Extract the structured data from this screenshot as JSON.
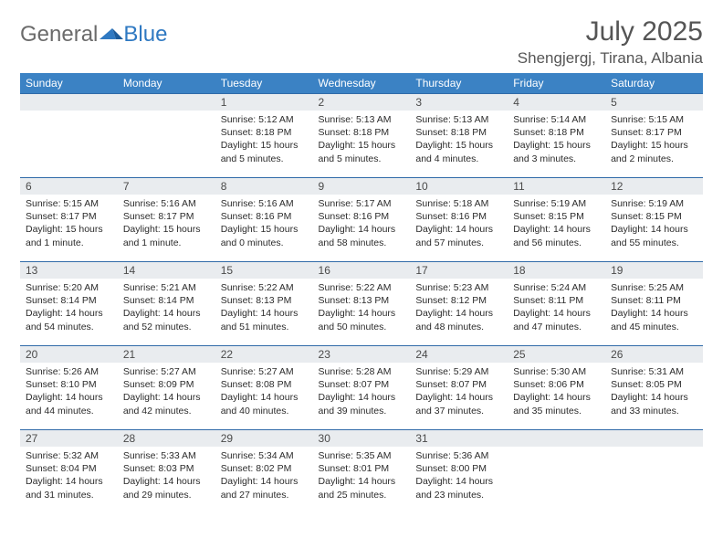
{
  "logo": {
    "part1": "General",
    "part2": "Blue"
  },
  "title": "July 2025",
  "location": "Shengjergj, Tirana, Albania",
  "colors": {
    "header_bg": "#3b82c4",
    "row_border": "#2f6aa8",
    "daynum_bg": "#e9ecef",
    "text": "#2b2b2b",
    "logo_gray": "#6b6b6b",
    "logo_blue": "#2f79c2"
  },
  "dayHeaders": [
    "Sunday",
    "Monday",
    "Tuesday",
    "Wednesday",
    "Thursday",
    "Friday",
    "Saturday"
  ],
  "startOffset": 2,
  "days": [
    {
      "n": 1,
      "sr": "5:12 AM",
      "ss": "8:18 PM",
      "dl": "15 hours and 5 minutes."
    },
    {
      "n": 2,
      "sr": "5:13 AM",
      "ss": "8:18 PM",
      "dl": "15 hours and 5 minutes."
    },
    {
      "n": 3,
      "sr": "5:13 AM",
      "ss": "8:18 PM",
      "dl": "15 hours and 4 minutes."
    },
    {
      "n": 4,
      "sr": "5:14 AM",
      "ss": "8:18 PM",
      "dl": "15 hours and 3 minutes."
    },
    {
      "n": 5,
      "sr": "5:15 AM",
      "ss": "8:17 PM",
      "dl": "15 hours and 2 minutes."
    },
    {
      "n": 6,
      "sr": "5:15 AM",
      "ss": "8:17 PM",
      "dl": "15 hours and 1 minute."
    },
    {
      "n": 7,
      "sr": "5:16 AM",
      "ss": "8:17 PM",
      "dl": "15 hours and 1 minute."
    },
    {
      "n": 8,
      "sr": "5:16 AM",
      "ss": "8:16 PM",
      "dl": "15 hours and 0 minutes."
    },
    {
      "n": 9,
      "sr": "5:17 AM",
      "ss": "8:16 PM",
      "dl": "14 hours and 58 minutes."
    },
    {
      "n": 10,
      "sr": "5:18 AM",
      "ss": "8:16 PM",
      "dl": "14 hours and 57 minutes."
    },
    {
      "n": 11,
      "sr": "5:19 AM",
      "ss": "8:15 PM",
      "dl": "14 hours and 56 minutes."
    },
    {
      "n": 12,
      "sr": "5:19 AM",
      "ss": "8:15 PM",
      "dl": "14 hours and 55 minutes."
    },
    {
      "n": 13,
      "sr": "5:20 AM",
      "ss": "8:14 PM",
      "dl": "14 hours and 54 minutes."
    },
    {
      "n": 14,
      "sr": "5:21 AM",
      "ss": "8:14 PM",
      "dl": "14 hours and 52 minutes."
    },
    {
      "n": 15,
      "sr": "5:22 AM",
      "ss": "8:13 PM",
      "dl": "14 hours and 51 minutes."
    },
    {
      "n": 16,
      "sr": "5:22 AM",
      "ss": "8:13 PM",
      "dl": "14 hours and 50 minutes."
    },
    {
      "n": 17,
      "sr": "5:23 AM",
      "ss": "8:12 PM",
      "dl": "14 hours and 48 minutes."
    },
    {
      "n": 18,
      "sr": "5:24 AM",
      "ss": "8:11 PM",
      "dl": "14 hours and 47 minutes."
    },
    {
      "n": 19,
      "sr": "5:25 AM",
      "ss": "8:11 PM",
      "dl": "14 hours and 45 minutes."
    },
    {
      "n": 20,
      "sr": "5:26 AM",
      "ss": "8:10 PM",
      "dl": "14 hours and 44 minutes."
    },
    {
      "n": 21,
      "sr": "5:27 AM",
      "ss": "8:09 PM",
      "dl": "14 hours and 42 minutes."
    },
    {
      "n": 22,
      "sr": "5:27 AM",
      "ss": "8:08 PM",
      "dl": "14 hours and 40 minutes."
    },
    {
      "n": 23,
      "sr": "5:28 AM",
      "ss": "8:07 PM",
      "dl": "14 hours and 39 minutes."
    },
    {
      "n": 24,
      "sr": "5:29 AM",
      "ss": "8:07 PM",
      "dl": "14 hours and 37 minutes."
    },
    {
      "n": 25,
      "sr": "5:30 AM",
      "ss": "8:06 PM",
      "dl": "14 hours and 35 minutes."
    },
    {
      "n": 26,
      "sr": "5:31 AM",
      "ss": "8:05 PM",
      "dl": "14 hours and 33 minutes."
    },
    {
      "n": 27,
      "sr": "5:32 AM",
      "ss": "8:04 PM",
      "dl": "14 hours and 31 minutes."
    },
    {
      "n": 28,
      "sr": "5:33 AM",
      "ss": "8:03 PM",
      "dl": "14 hours and 29 minutes."
    },
    {
      "n": 29,
      "sr": "5:34 AM",
      "ss": "8:02 PM",
      "dl": "14 hours and 27 minutes."
    },
    {
      "n": 30,
      "sr": "5:35 AM",
      "ss": "8:01 PM",
      "dl": "14 hours and 25 minutes."
    },
    {
      "n": 31,
      "sr": "5:36 AM",
      "ss": "8:00 PM",
      "dl": "14 hours and 23 minutes."
    }
  ],
  "labels": {
    "sunrise": "Sunrise:",
    "sunset": "Sunset:",
    "daylight": "Daylight:"
  }
}
